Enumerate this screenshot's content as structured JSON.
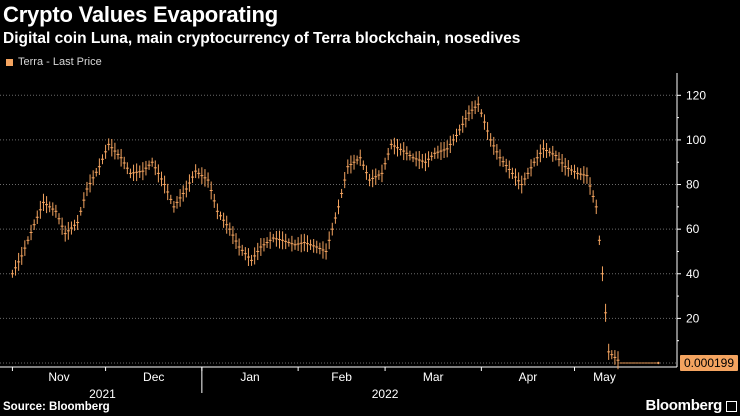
{
  "header": {
    "title": "Crypto Values Evaporating",
    "subtitle": "Digital coin Luna, main cryptocurrency of Terra blockchain, nosedives"
  },
  "legend": {
    "label": "Terra - Last Price",
    "color": "#f4a460"
  },
  "footer": {
    "source": "Source: Bloomberg",
    "brand": "Bloomberg"
  },
  "chart_data": {
    "type": "line",
    "title": "Crypto Values Evaporating",
    "subtitle": "Digital coin Luna, main cryptocurrency of Terra blockchain, nosedives",
    "series": [
      {
        "name": "Terra - Last Price",
        "color": "#f4a460",
        "x": [
          "2021-11-01",
          "2021-11-04",
          "2021-11-08",
          "2021-11-11",
          "2021-11-15",
          "2021-11-18",
          "2021-11-22",
          "2021-11-25",
          "2021-11-29",
          "2021-12-02",
          "2021-12-06",
          "2021-12-09",
          "2021-12-13",
          "2021-12-16",
          "2021-12-20",
          "2021-12-23",
          "2021-12-27",
          "2021-12-30",
          "2022-01-03",
          "2022-01-06",
          "2022-01-10",
          "2022-01-13",
          "2022-01-17",
          "2022-01-20",
          "2022-01-24",
          "2022-01-27",
          "2022-01-31",
          "2022-02-03",
          "2022-02-07",
          "2022-02-10",
          "2022-02-14",
          "2022-02-17",
          "2022-02-21",
          "2022-02-24",
          "2022-02-28",
          "2022-03-03",
          "2022-03-07",
          "2022-03-10",
          "2022-03-14",
          "2022-03-17",
          "2022-03-21",
          "2022-03-24",
          "2022-03-28",
          "2022-03-31",
          "2022-04-04",
          "2022-04-07",
          "2022-04-11",
          "2022-04-14",
          "2022-04-18",
          "2022-04-21",
          "2022-04-25",
          "2022-04-28",
          "2022-05-02",
          "2022-05-05",
          "2022-05-08",
          "2022-05-10",
          "2022-05-12",
          "2022-05-16",
          "2022-05-20",
          "2022-05-24",
          "2022-05-28"
        ],
        "y": [
          40,
          48,
          62,
          72,
          68,
          58,
          63,
          78,
          88,
          98,
          92,
          85,
          86,
          90,
          80,
          70,
          78,
          86,
          82,
          68,
          60,
          52,
          46,
          52,
          56,
          55,
          53,
          54,
          52,
          50,
          70,
          88,
          92,
          82,
          85,
          98,
          95,
          92,
          90,
          94,
          96,
          102,
          112,
          116,
          100,
          92,
          85,
          80,
          90,
          96,
          93,
          88,
          85,
          84,
          70,
          40,
          5,
          0.0002,
          0.0002,
          0.0002,
          0.000199
        ]
      }
    ],
    "xlabel": "",
    "ylabel": "",
    "ylim": [
      0,
      130
    ],
    "yticks": [
      20,
      40,
      60,
      80,
      100,
      120
    ],
    "xlim": [
      "2021-10-28",
      "2022-06-03"
    ],
    "x_ticks": [
      {
        "label": "Nov",
        "date": "2021-11-01"
      },
      {
        "label": "Dec",
        "date": "2021-12-01"
      },
      {
        "label": "Jan",
        "date": "2022-01-01"
      },
      {
        "label": "Feb",
        "date": "2022-02-01"
      },
      {
        "label": "Mar",
        "date": "2022-03-01"
      },
      {
        "label": "Apr",
        "date": "2022-04-01"
      },
      {
        "label": "May",
        "date": "2022-05-01"
      }
    ],
    "x_years": [
      {
        "label": "2021",
        "date": "2021-11-30"
      },
      {
        "label": "2022",
        "date": "2022-03-01"
      }
    ],
    "last_value_label": "0.000199",
    "grid": true,
    "legend_position": "top-left",
    "y_axis_position": "right"
  }
}
